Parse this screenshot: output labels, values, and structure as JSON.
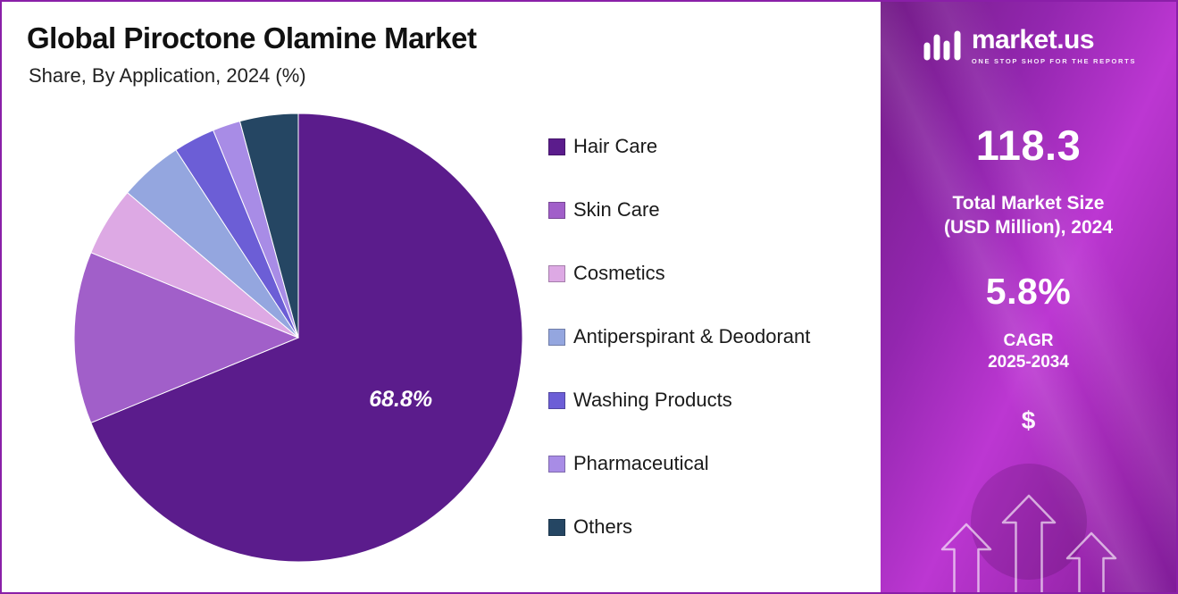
{
  "header": {
    "title": "Global Piroctone Olamine Market",
    "subtitle": "Share, By Application, 2024 (%)"
  },
  "chart_data": {
    "type": "pie",
    "title": "Global Piroctone Olamine Market",
    "subtitle": "Share, By Application, 2024 (%)",
    "unit": "%",
    "legend_position": "right",
    "start_angle": "top",
    "direction": "clockwise",
    "segments": [
      {
        "label": "Hair Care",
        "value": 68.8,
        "color": "#5B1C8C",
        "data_label": "68.8%"
      },
      {
        "label": "Skin Care",
        "value": 12.4,
        "color": "#A15FC9",
        "data_label": ""
      },
      {
        "label": "Cosmetics",
        "value": 5.0,
        "color": "#DDA9E4",
        "data_label": ""
      },
      {
        "label": "Antiperspirant & Deodorant",
        "value": 4.6,
        "color": "#94A6DF",
        "data_label": ""
      },
      {
        "label": "Washing Products",
        "value": 3.0,
        "color": "#6C5ED6",
        "data_label": ""
      },
      {
        "label": "Pharmaceutical",
        "value": 2.0,
        "color": "#A88CE6",
        "data_label": ""
      },
      {
        "label": "Others",
        "value": 4.2,
        "color": "#254663",
        "data_label": ""
      }
    ]
  },
  "sidebar": {
    "brand": "market.us",
    "tagline": "ONE STOP SHOP FOR THE REPORTS",
    "market_size": {
      "value": "118.3",
      "label_line1": "Total Market Size",
      "label_line2": "(USD Million), 2024"
    },
    "cagr": {
      "value": "5.8%",
      "label_line1": "CAGR",
      "label_line2": "2025-2034"
    },
    "dollar_symbol": "$"
  },
  "colors": {
    "accent_border": "#8A1FA8",
    "sidebar_top": "#731C87",
    "sidebar_mid": "#BC37D2",
    "sidebar_bottom": "#801C98",
    "slice_label": "#FFFFFF",
    "legend_text": "#1A1A1A",
    "title_text": "#111111"
  }
}
